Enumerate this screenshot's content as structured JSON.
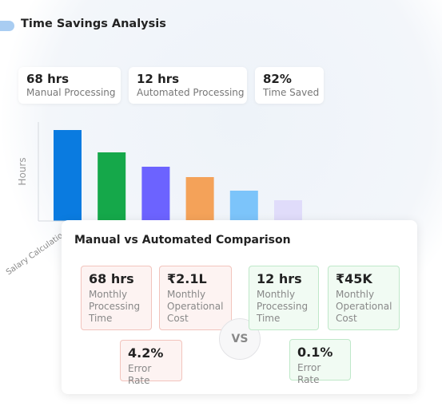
{
  "header": {
    "title": "Time Savings Analysis"
  },
  "stats": [
    {
      "value": "68 hrs",
      "label": "Manual Processing"
    },
    {
      "value": "12 hrs",
      "label": "Automated Processing"
    },
    {
      "value": "82%",
      "label": "Time Saved"
    }
  ],
  "chart_data": {
    "type": "bar",
    "y_label": "Hours",
    "categories": [
      "Salary Calculation",
      null,
      null,
      null,
      null,
      null
    ],
    "values": [
      114,
      86,
      68,
      55,
      38,
      26
    ],
    "colors": [
      "#0a7be0",
      "#15a84a",
      "#6c63ff",
      "#f4a259",
      "#7cc4fa",
      "#e0dcfa"
    ],
    "ylim": [
      0,
      120
    ]
  },
  "comparison": {
    "title": "Manual vs Automated Comparison",
    "vs": "VS",
    "manual": [
      {
        "value": "68 hrs",
        "label": "Monthly Processing Time"
      },
      {
        "value": "₹2.1L",
        "label": "Monthly Operational Cost"
      },
      {
        "value": "4.2%",
        "label": "Error Rate"
      }
    ],
    "automated": [
      {
        "value": "12 hrs",
        "label": "Monthly Processing Time"
      },
      {
        "value": "₹45K",
        "label": "Monthly Operational Cost"
      },
      {
        "value": "0.1%",
        "label": "Error Rate"
      }
    ]
  }
}
